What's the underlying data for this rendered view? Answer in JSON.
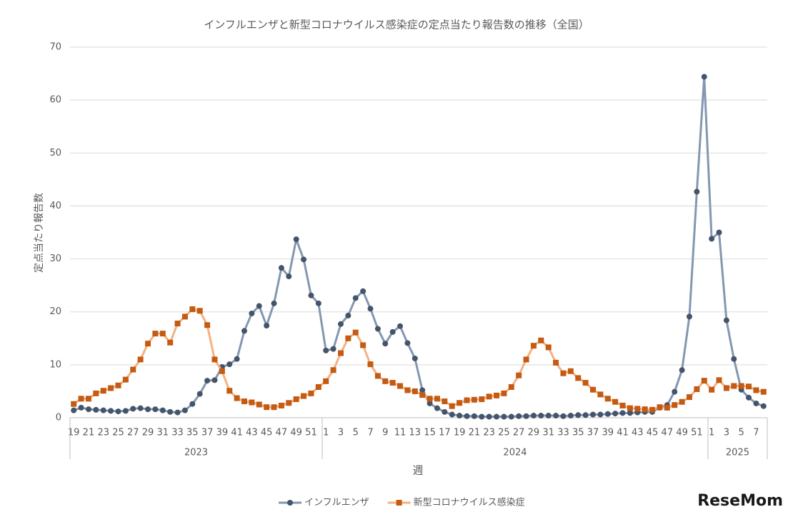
{
  "chart_data": {
    "type": "line",
    "title": "インフルエンザと新型コロナウイルス感染症の定点当たり報告数の推移（全国）",
    "x_label": "週",
    "y_label": "定点当たり報告数",
    "categories": [
      "19",
      null,
      "21",
      null,
      "23",
      null,
      "25",
      null,
      "27",
      null,
      "29",
      null,
      "31",
      null,
      "33",
      null,
      "35",
      null,
      "37",
      null,
      "39",
      null,
      "41",
      null,
      "43",
      null,
      "45",
      null,
      "47",
      null,
      "49",
      null,
      "51",
      null,
      "1",
      null,
      "3",
      null,
      "5",
      null,
      "7",
      null,
      "9",
      null,
      "11",
      null,
      "13",
      null,
      "15",
      null,
      "17",
      null,
      "19",
      null,
      "21",
      null,
      "23",
      null,
      "25",
      null,
      "27",
      null,
      "29",
      null,
      "31",
      null,
      "33",
      null,
      "35",
      null,
      "37",
      null,
      "39",
      null,
      "41",
      null,
      "43",
      null,
      "45",
      null,
      "47",
      null,
      "49",
      null,
      "51",
      null,
      "1",
      null,
      "3",
      null,
      "5",
      null,
      "7",
      null
    ],
    "x_groups": [
      "2023",
      "2024",
      "2025"
    ],
    "series": [
      {
        "name": "インフルエンザ",
        "color": "#8497b0",
        "marker_color": "#44546a",
        "marker": "circle",
        "values": [
          1.4,
          1.9,
          1.6,
          1.5,
          1.4,
          1.3,
          1.2,
          1.3,
          1.7,
          1.8,
          1.6,
          1.6,
          1.4,
          1.1,
          1.0,
          1.4,
          2.6,
          4.5,
          7.0,
          7.1,
          9.6,
          10.1,
          11.1,
          16.4,
          19.7,
          21.1,
          17.4,
          21.6,
          28.3,
          26.7,
          33.7,
          29.9,
          23.1,
          21.6,
          12.7,
          13.0,
          17.7,
          19.3,
          22.6,
          23.9,
          20.6,
          16.8,
          14.0,
          16.2,
          17.3,
          14.1,
          11.2,
          5.2,
          2.7,
          1.8,
          1.1,
          0.6,
          0.4,
          0.3,
          0.3,
          0.2,
          0.2,
          0.2,
          0.2,
          0.2,
          0.3,
          0.3,
          0.4,
          0.4,
          0.4,
          0.4,
          0.3,
          0.4,
          0.5,
          0.5,
          0.6,
          0.6,
          0.7,
          0.8,
          0.9,
          0.9,
          1.0,
          1.1,
          1.1,
          1.9,
          2.4,
          4.9,
          9.0,
          19.1,
          42.7,
          64.4,
          33.8,
          35.0,
          18.4,
          11.1,
          5.3,
          3.8,
          2.7,
          2.2
        ]
      },
      {
        "name": "新型コロナウイルス感染症",
        "color": "#f4b183",
        "marker_color": "#c55a11",
        "marker": "square",
        "values": [
          2.6,
          3.6,
          3.6,
          4.6,
          5.1,
          5.6,
          6.1,
          7.2,
          9.1,
          11.0,
          14.0,
          15.9,
          15.9,
          14.2,
          17.8,
          19.1,
          20.5,
          20.2,
          17.5,
          11.0,
          8.8,
          5.1,
          3.7,
          3.1,
          2.9,
          2.5,
          2.0,
          2.0,
          2.3,
          2.8,
          3.5,
          4.1,
          4.6,
          5.8,
          6.9,
          9.0,
          12.2,
          15.0,
          16.1,
          13.7,
          10.1,
          7.9,
          6.9,
          6.6,
          6.0,
          5.2,
          5.0,
          4.3,
          3.6,
          3.6,
          3.1,
          2.2,
          2.8,
          3.3,
          3.4,
          3.5,
          4.0,
          4.2,
          4.6,
          5.8,
          8.0,
          11.0,
          13.6,
          14.6,
          13.3,
          10.4,
          8.4,
          8.8,
          7.5,
          6.6,
          5.3,
          4.4,
          3.6,
          3.0,
          2.3,
          1.8,
          1.7,
          1.6,
          1.5,
          2.0,
          1.9,
          2.4,
          3.0,
          3.9,
          5.4,
          7.0,
          5.3,
          7.1,
          5.6,
          6.0,
          6.0,
          5.9,
          5.2,
          4.9
        ]
      }
    ],
    "ylim": [
      0,
      70
    ],
    "yticks": [
      0,
      10,
      20,
      30,
      40,
      50,
      60,
      70
    ],
    "grid": true,
    "legend": "bottom",
    "watermark": "ReseMom"
  }
}
